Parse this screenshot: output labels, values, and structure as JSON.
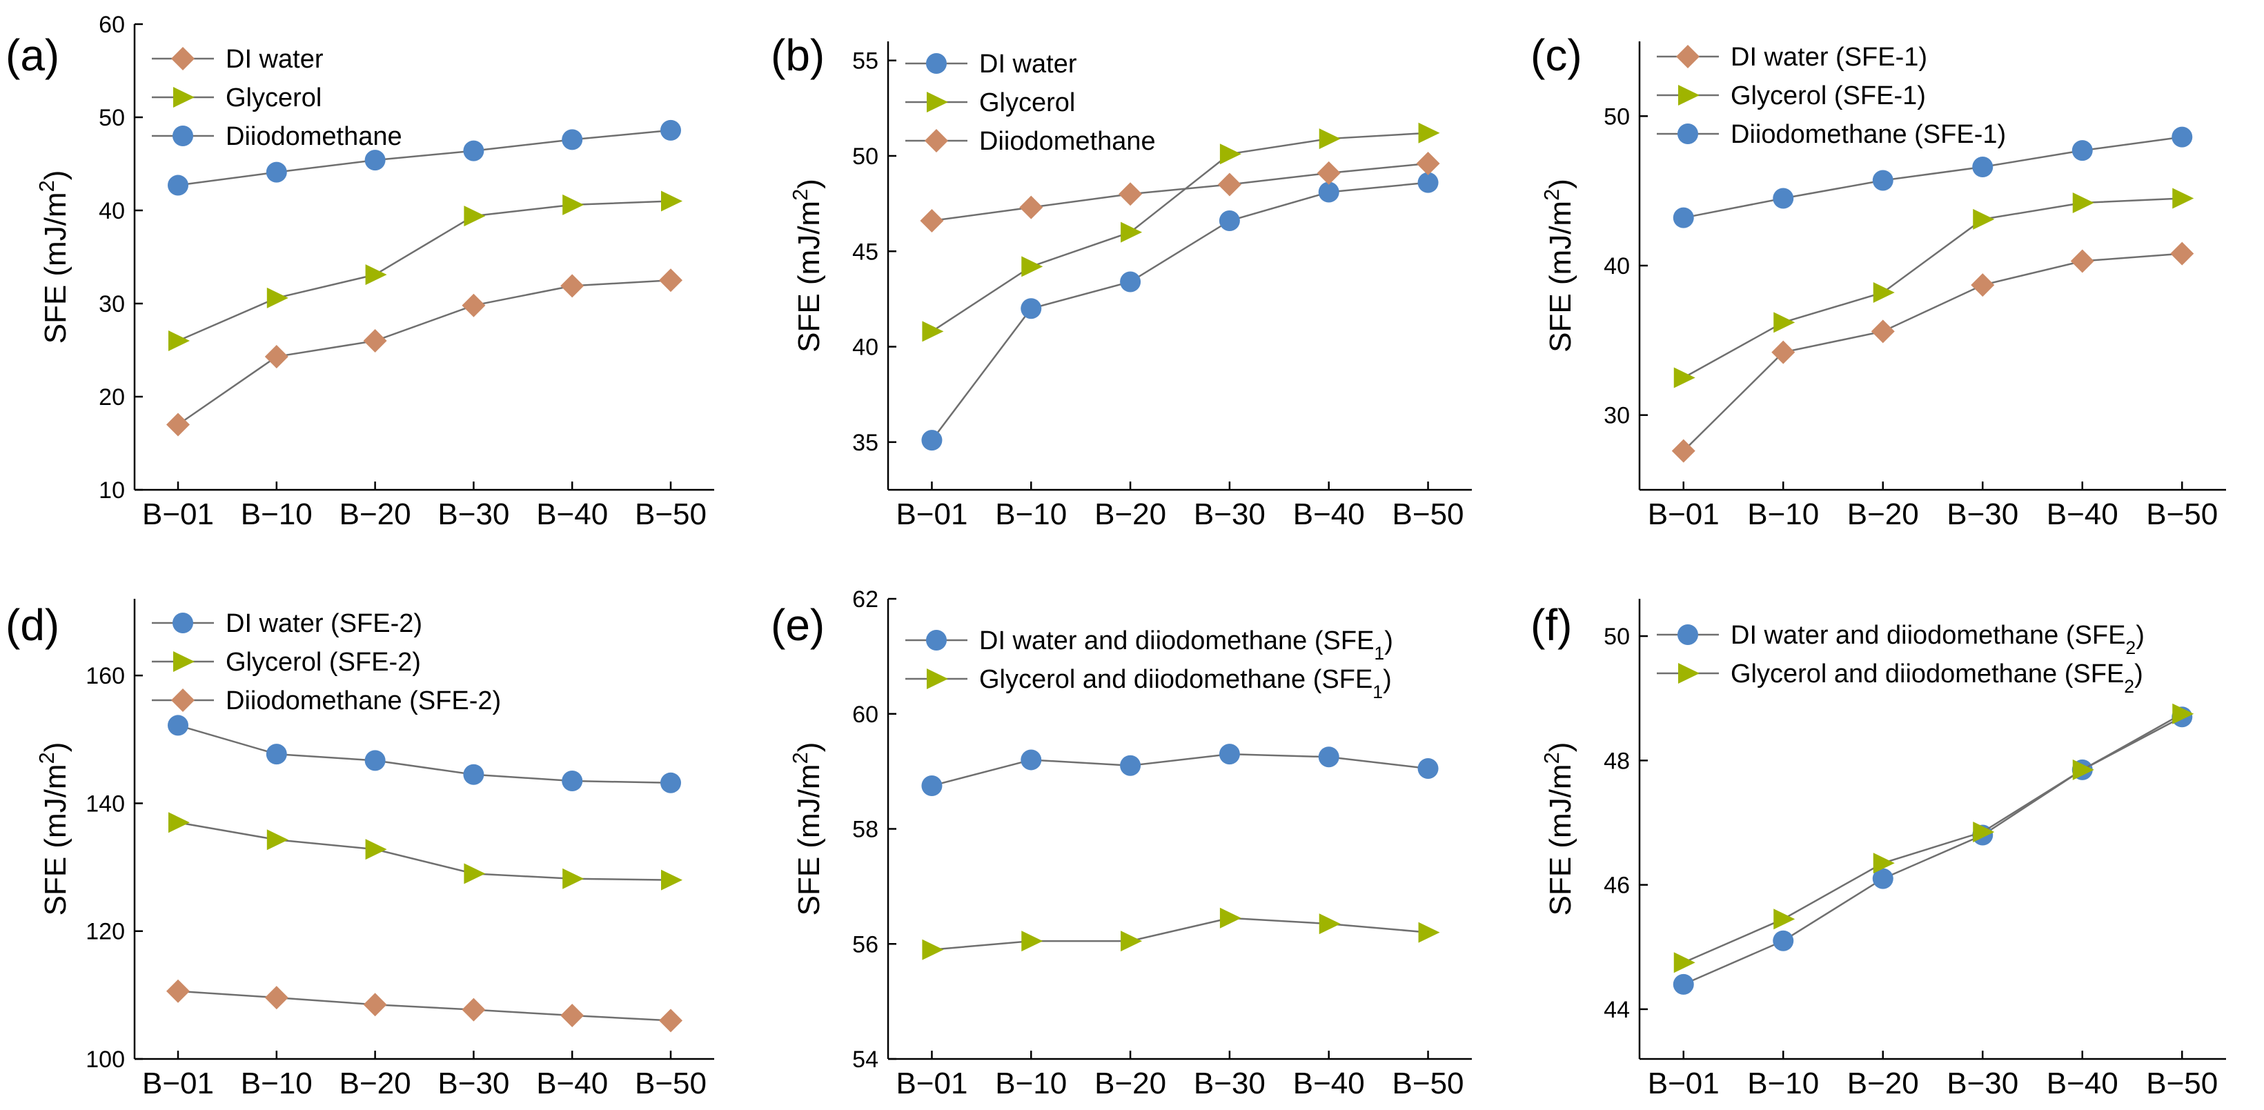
{
  "colors": {
    "orange": "#cc8a66",
    "green": "#9fb400",
    "blue": "#4f86c6",
    "line": "#6f6f6f"
  },
  "categories": [
    "B−01",
    "B−10",
    "B−20",
    "B−30",
    "B−40",
    "B−50"
  ],
  "chart_data": [
    {
      "type": "line",
      "panel_label": "(a)",
      "ylabel": "SFE (mJ/m²)",
      "ylabel_main": "SFE (mJ/m",
      "ylabel_sup": "2",
      "ylabel_end": ")",
      "ylim": [
        10,
        60
      ],
      "yticks": [
        10,
        20,
        30,
        40,
        50,
        60
      ],
      "legend_position": "top-left",
      "series": [
        {
          "name": "DI water",
          "marker": "diamond",
          "color": "#cc8a66",
          "values": [
            17.0,
            24.3,
            26.0,
            29.8,
            31.9,
            32.5
          ]
        },
        {
          "name": "Glycerol",
          "marker": "triangle",
          "color": "#9fb400",
          "values": [
            26.0,
            30.6,
            33.1,
            39.4,
            40.6,
            41.0
          ]
        },
        {
          "name": "Diiodomethane",
          "marker": "circle",
          "color": "#4f86c6",
          "values": [
            42.7,
            44.1,
            45.4,
            46.4,
            47.6,
            48.6
          ]
        }
      ]
    },
    {
      "type": "line",
      "panel_label": "(b)",
      "ylabel": "SFE (mJ/m²)",
      "ylabel_main": "SFE (mJ/m",
      "ylabel_sup": "2",
      "ylabel_end": ")",
      "ylim": [
        32.5,
        56
      ],
      "yticks": [
        35,
        40,
        45,
        50,
        55
      ],
      "legend_position": "top-left",
      "series": [
        {
          "name": "DI water",
          "marker": "circle",
          "color": "#4f86c6",
          "values": [
            35.1,
            42.0,
            43.4,
            46.6,
            48.1,
            48.6
          ]
        },
        {
          "name": "Glycerol",
          "marker": "triangle",
          "color": "#9fb400",
          "values": [
            40.8,
            44.2,
            46.0,
            50.1,
            50.9,
            51.2
          ]
        },
        {
          "name": "Diiodomethane",
          "marker": "diamond",
          "color": "#cc8a66",
          "values": [
            46.6,
            47.3,
            48.0,
            48.5,
            49.1,
            49.6
          ]
        }
      ]
    },
    {
      "type": "line",
      "panel_label": "(c)",
      "ylabel": "SFE (mJ/m²)",
      "ylabel_main": "SFE (mJ/m",
      "ylabel_sup": "2",
      "ylabel_end": ")",
      "ylim": [
        25,
        55
      ],
      "yticks": [
        30,
        40,
        50
      ],
      "legend_position": "top-left",
      "series": [
        {
          "name": "DI water (SFE-1)",
          "marker": "diamond",
          "color": "#cc8a66",
          "values": [
            27.6,
            34.2,
            35.6,
            38.7,
            40.3,
            40.8
          ]
        },
        {
          "name": "Glycerol (SFE-1)",
          "marker": "triangle",
          "color": "#9fb400",
          "values": [
            32.5,
            36.2,
            38.2,
            43.1,
            44.2,
            44.5
          ]
        },
        {
          "name": "Diiodomethane (SFE-1)",
          "marker": "circle",
          "color": "#4f86c6",
          "values": [
            43.2,
            44.5,
            45.7,
            46.6,
            47.7,
            48.6
          ]
        }
      ]
    },
    {
      "type": "line",
      "panel_label": "(d)",
      "ylabel": "SFE (mJ/m²)",
      "ylabel_main": "SFE (mJ/m",
      "ylabel_sup": "2",
      "ylabel_end": ")",
      "ylim": [
        100,
        172
      ],
      "yticks": [
        100,
        120,
        140,
        160
      ],
      "legend_position": "top-left",
      "series": [
        {
          "name": "DI water (SFE-2)",
          "marker": "circle",
          "color": "#4f86c6",
          "values": [
            152.2,
            147.7,
            146.7,
            144.5,
            143.5,
            143.2
          ]
        },
        {
          "name": "Glycerol (SFE-2)",
          "marker": "triangle",
          "color": "#9fb400",
          "values": [
            137.0,
            134.3,
            132.8,
            129.0,
            128.2,
            128.0
          ]
        },
        {
          "name": "Diiodomethane (SFE-2)",
          "marker": "diamond",
          "color": "#cc8a66",
          "values": [
            110.6,
            109.6,
            108.5,
            107.7,
            106.8,
            106.0
          ]
        }
      ]
    },
    {
      "type": "line",
      "panel_label": "(e)",
      "ylabel": "SFE (mJ/m²)",
      "ylabel_main": "SFE (mJ/m",
      "ylabel_sup": "2",
      "ylabel_end": ")",
      "ylim": [
        54,
        62
      ],
      "yticks": [
        54,
        56,
        58,
        60,
        62
      ],
      "legend_position": "top-left",
      "series": [
        {
          "name": "DI water and diiodomethane (SFE₁)",
          "name_main": "DI water and diiodomethane (SFE",
          "name_sub": "1",
          "name_end": ")",
          "marker": "circle",
          "color": "#4f86c6",
          "values": [
            58.75,
            59.2,
            59.1,
            59.3,
            59.25,
            59.05
          ]
        },
        {
          "name": "Glycerol and diiodomethane (SFE₁)",
          "name_main": "Glycerol and diiodomethane (SFE",
          "name_sub": "1",
          "name_end": ")",
          "marker": "triangle",
          "color": "#9fb400",
          "values": [
            55.9,
            56.05,
            56.05,
            56.45,
            56.35,
            56.2
          ]
        }
      ]
    },
    {
      "type": "line",
      "panel_label": "(f)",
      "ylabel": "SFE (mJ/m²)",
      "ylabel_main": "SFE (mJ/m",
      "ylabel_sup": "2",
      "ylabel_end": ")",
      "ylim": [
        43.2,
        50.6
      ],
      "yticks": [
        44,
        46,
        48,
        50
      ],
      "legend_position": "top-left",
      "series": [
        {
          "name": "DI water and diiodomethane (SFE₂)",
          "name_main": "DI water and diiodomethane (SFE",
          "name_sub": "2",
          "name_end": ")",
          "marker": "circle",
          "color": "#4f86c6",
          "values": [
            44.4,
            45.1,
            46.1,
            46.8,
            47.85,
            48.7
          ]
        },
        {
          "name": "Glycerol and diiodomethane (SFE₂)",
          "name_main": "Glycerol and diiodomethane (SFE",
          "name_sub": "2",
          "name_end": ")",
          "marker": "triangle",
          "color": "#9fb400",
          "values": [
            44.75,
            45.45,
            46.35,
            46.85,
            47.85,
            48.75
          ]
        }
      ]
    }
  ]
}
